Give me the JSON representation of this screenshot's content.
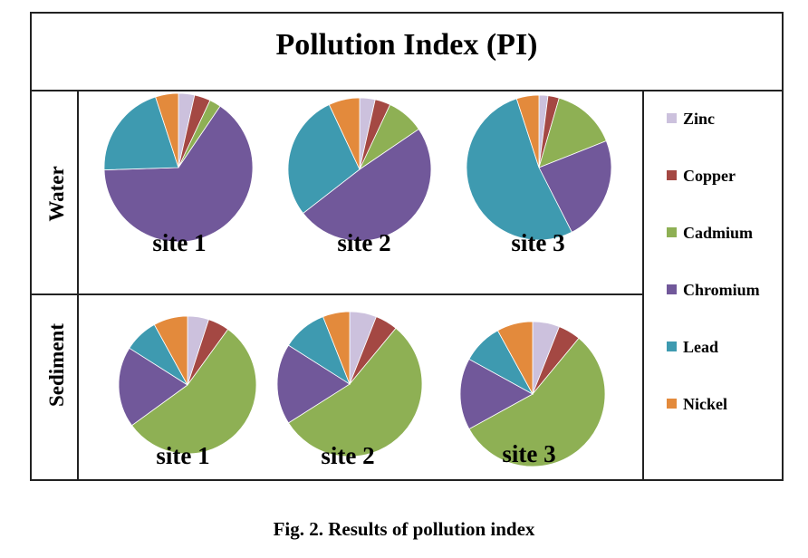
{
  "title": "Pollution Index (PI)",
  "caption": "Fig. 2. Results of pollution index",
  "legend": {
    "placement": "right",
    "items": [
      {
        "label": "Zinc",
        "color": "#ccc1dd"
      },
      {
        "label": "Copper",
        "color": "#a44843"
      },
      {
        "label": "Cadmium",
        "color": "#8eb054"
      },
      {
        "label": "Chromium",
        "color": "#71589a"
      },
      {
        "label": "Lead",
        "color": "#3e9ab0"
      },
      {
        "label": "Nickel",
        "color": "#e38a3c"
      }
    ]
  },
  "chart_data": {
    "type": "pie",
    "title": "Pollution Index (PI)",
    "slice_order": [
      "Zinc",
      "Copper",
      "Cadmium",
      "Chromium",
      "Lead",
      "Nickel"
    ],
    "rows": [
      {
        "label": "Water",
        "charts": [
          {
            "label": "site 1",
            "percent": [
              3.5,
              3.5,
              2.5,
              65,
              20.5,
              5
            ]
          },
          {
            "label": "site 2",
            "percent": [
              3.5,
              3.5,
              8.5,
              49,
              28.5,
              7
            ]
          },
          {
            "label": "site 3",
            "percent": [
              2,
              2.5,
              14.5,
              23.5,
              52.5,
              5
            ]
          }
        ]
      },
      {
        "label": "Sediment",
        "charts": [
          {
            "label": "site 1",
            "percent": [
              5,
              5,
              55,
              19,
              8,
              8
            ]
          },
          {
            "label": "site 2",
            "percent": [
              6,
              5,
              55,
              18,
              10,
              6
            ]
          },
          {
            "label": "site 3",
            "percent": [
              6,
              5,
              56,
              16,
              9,
              8
            ]
          }
        ]
      }
    ]
  }
}
